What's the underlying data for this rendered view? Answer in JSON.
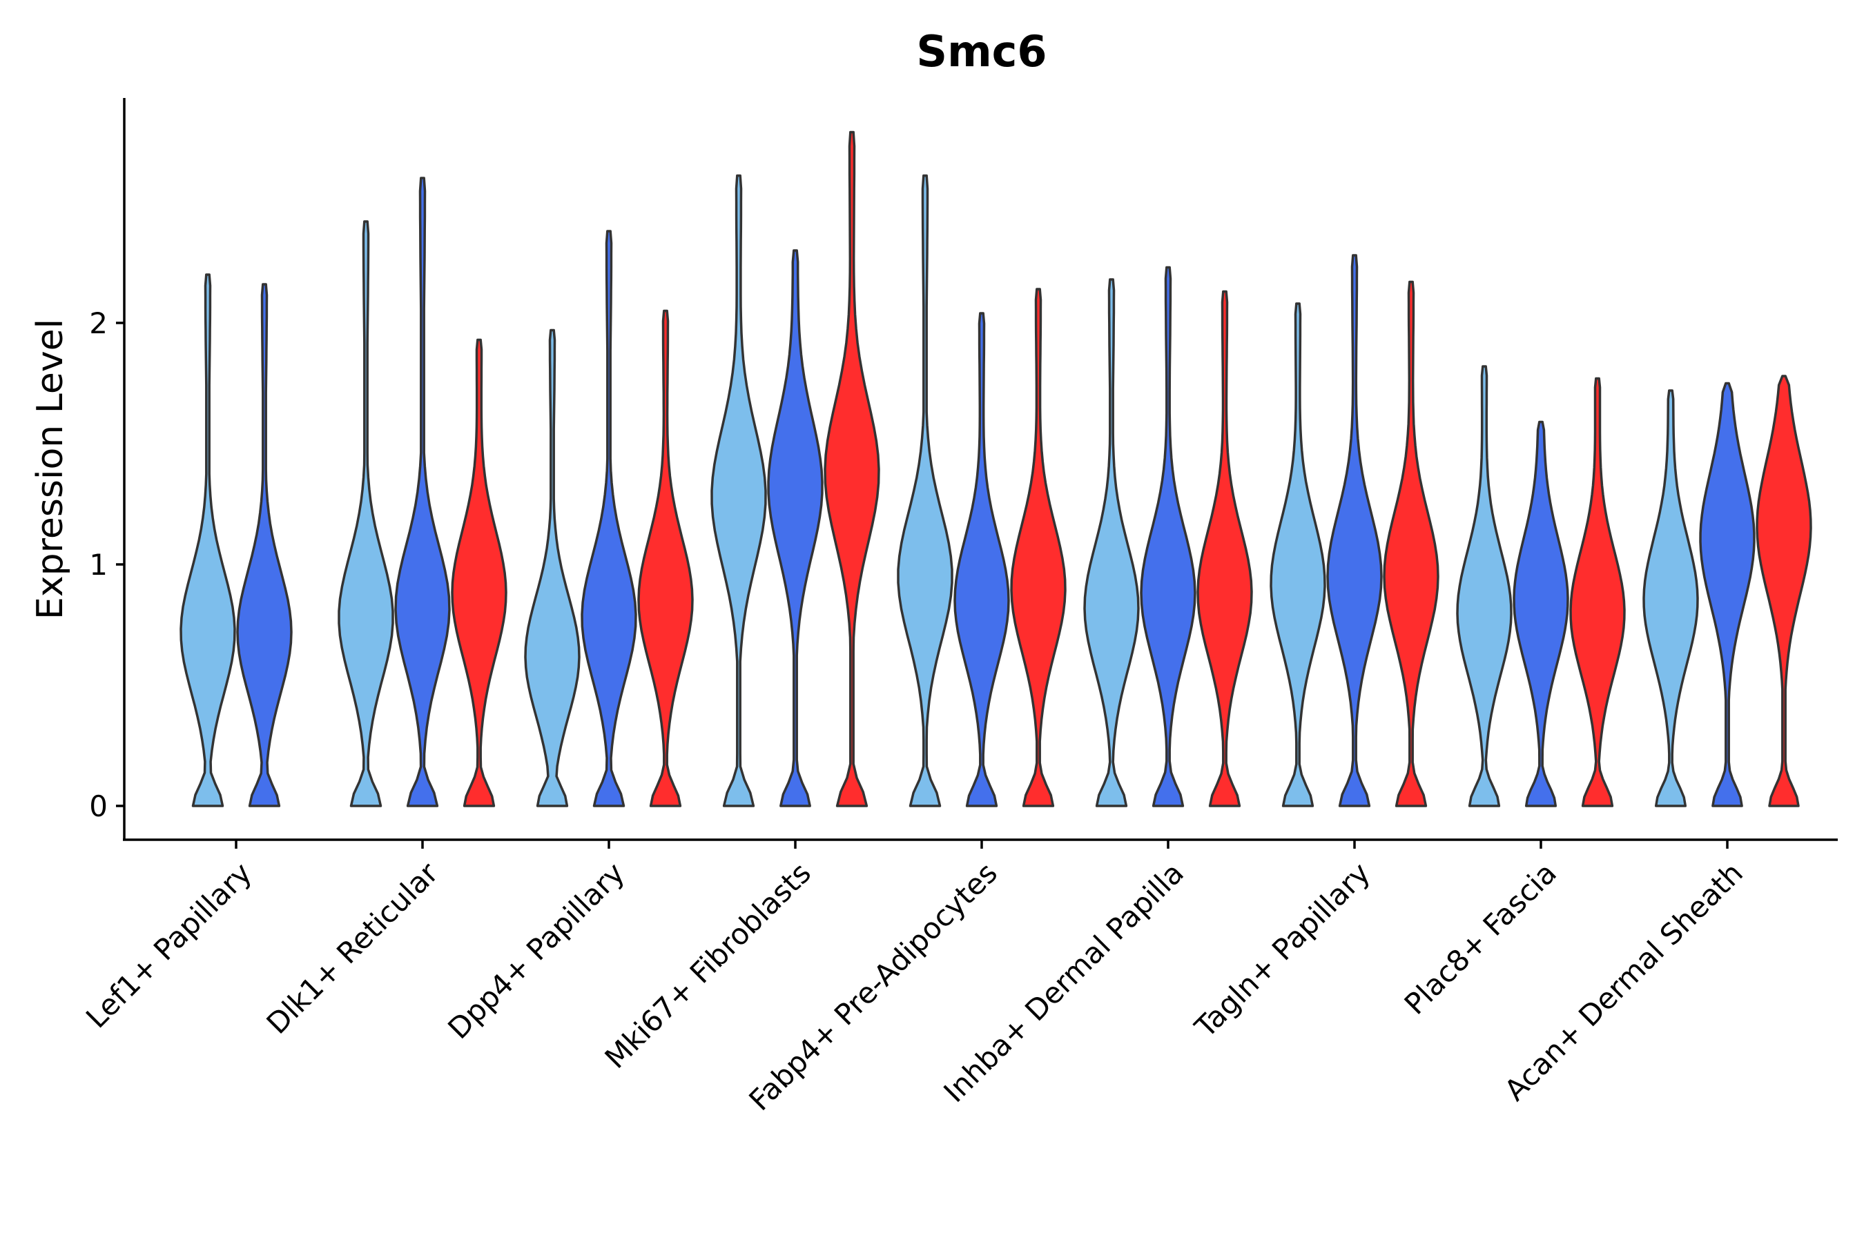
{
  "chart_data": {
    "type": "violin",
    "title": "Smc6",
    "xlabel": "",
    "ylabel": "Expression Level",
    "ylim": [
      -0.14,
      2.93
    ],
    "yticks": [
      0,
      1,
      2
    ],
    "categories": [
      "Lef1+ Papillary",
      "Dlk1+ Reticular",
      "Dpp4+ Papillary",
      "Mki67+ Fibroblasts",
      "Fabp4+ Pre-Adipocytes",
      "Inhba+ Dermal Papilla",
      "Tagln+ Papillary",
      "Plac8+ Fascia",
      "Acan+ Dermal Sheath"
    ],
    "series": [
      {
        "name": "group 1",
        "color": "#7DBEEC",
        "max": [
          2.2,
          2.42,
          1.97,
          2.61,
          2.61,
          2.18,
          2.08,
          1.82,
          1.72
        ],
        "peak": [
          0.72,
          0.78,
          0.62,
          1.28,
          0.95,
          0.82,
          0.92,
          0.8,
          0.85
        ]
      },
      {
        "name": "group 2",
        "color": "#4470EC",
        "max": [
          2.16,
          2.6,
          2.38,
          2.3,
          2.04,
          2.23,
          2.28,
          1.59,
          1.75
        ],
        "peak": [
          0.72,
          0.82,
          0.78,
          1.32,
          0.85,
          0.88,
          0.95,
          0.85,
          1.1
        ]
      },
      {
        "name": "group 3",
        "color": "#FF2D2D",
        "max": [
          null,
          1.93,
          2.05,
          2.79,
          2.14,
          2.13,
          2.17,
          1.77,
          1.78
        ],
        "peak": [
          null,
          0.88,
          0.85,
          1.38,
          0.9,
          0.88,
          0.95,
          0.8,
          1.15
        ]
      }
    ]
  }
}
